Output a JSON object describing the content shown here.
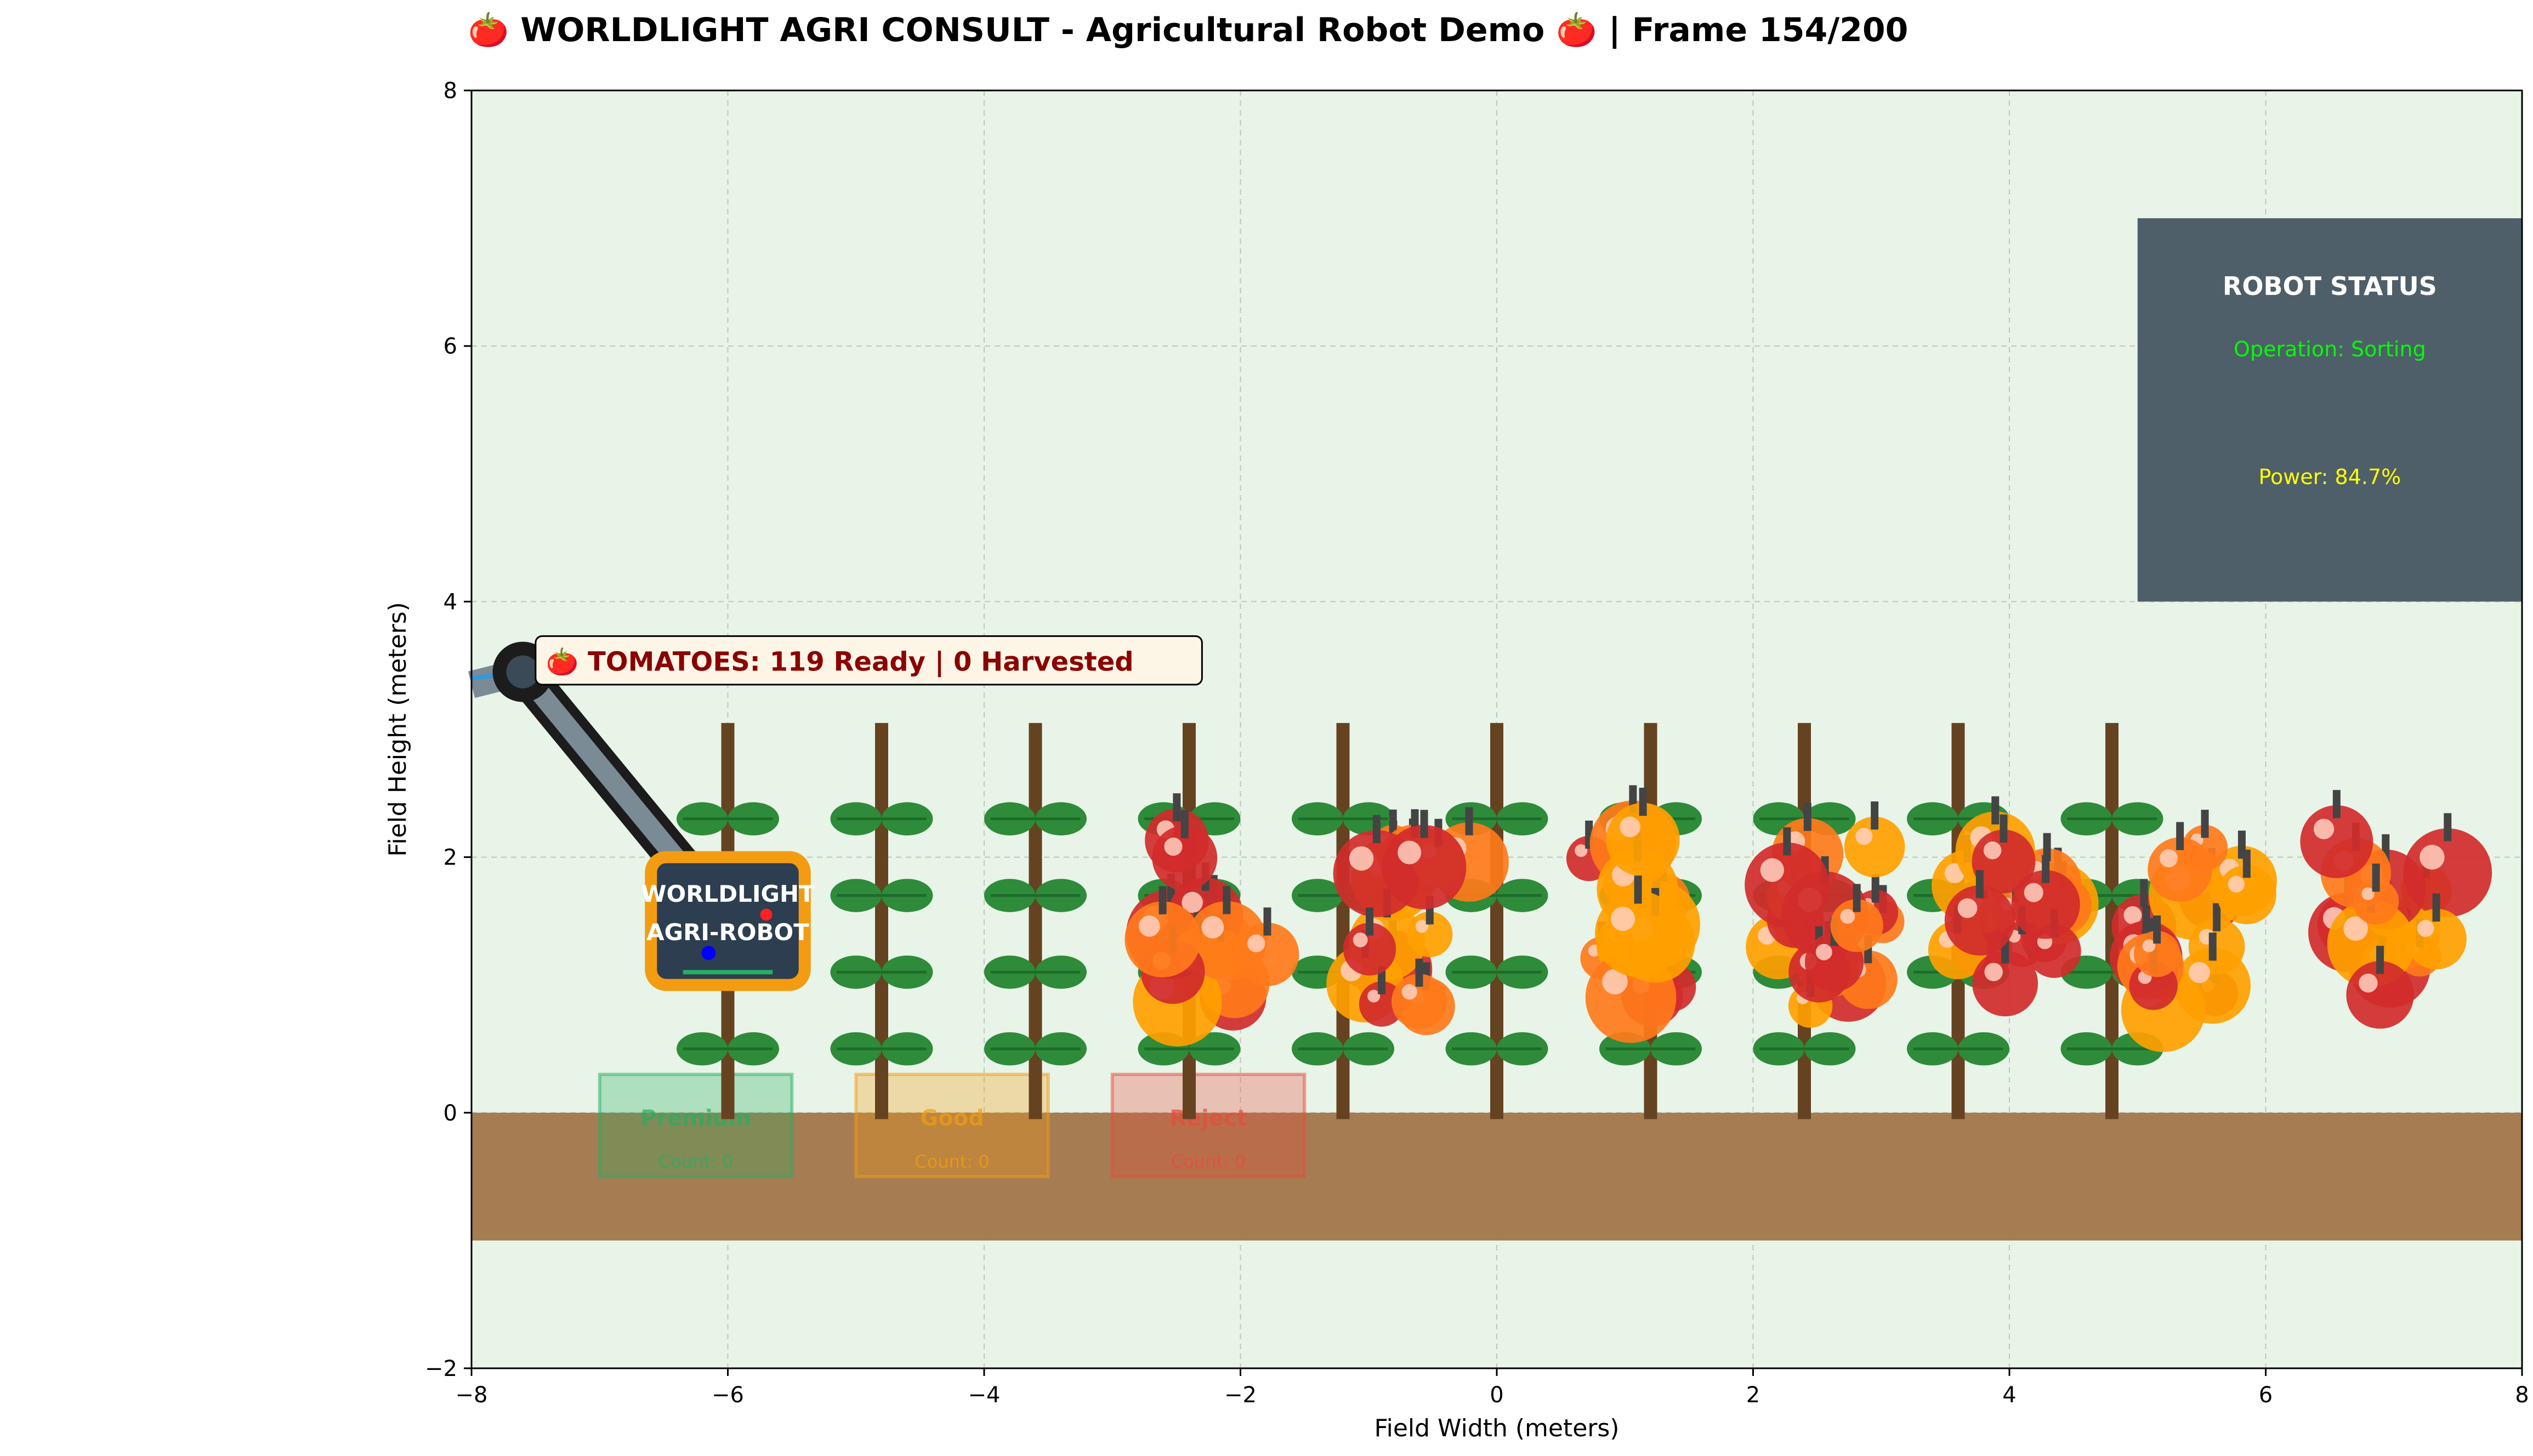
{
  "chart_data": {
    "type": "scatter",
    "title": "🍅 WORLDLIGHT AGRI CONSULT - Agricultural Robot Demo 🍅 | Frame 154/200",
    "xlabel": "Field Width (meters)",
    "ylabel": "Field Height (meters)",
    "xlim": [
      -8,
      8
    ],
    "ylim": [
      -2,
      8
    ],
    "xticks": [
      -8,
      -6,
      -4,
      -2,
      0,
      2,
      4,
      6,
      8
    ],
    "yticks": [
      -2,
      0,
      2,
      4,
      6,
      8
    ],
    "xtick_labels": [
      "−8",
      "−6",
      "−4",
      "−2",
      "0",
      "2",
      "4",
      "6",
      "8"
    ],
    "ytick_labels": [
      "−2",
      "0",
      "2",
      "4",
      "6",
      "8"
    ],
    "grid": true,
    "plant_stakes_x": [
      -6,
      -4.8,
      -3.6,
      -2.4,
      -1.2,
      0,
      1.2,
      2.4,
      3.6,
      4.8
    ],
    "leaf_rows_y": [
      0.5,
      1.1,
      1.7,
      2.3
    ],
    "tomato_clusters_x": [
      -2.2,
      -0.6,
      1.1,
      2.6,
      4.0,
      5.5,
      7.0
    ],
    "soil": {
      "y_top": 0,
      "y_bottom": -1
    },
    "robot": {
      "label_line1": "WORLDLIGHT",
      "label_line2": "AGRI-ROBOT",
      "body_center": [
        -6,
        1.5
      ],
      "arm_end": [
        -7.6,
        3.45
      ]
    },
    "tomato_banner": "🍅 TOMATOES: 119 Ready | 0 Harvested",
    "status_panel": {
      "title": "ROBOT STATUS",
      "operation": "Operation: Sorting",
      "power": "Power: 84.7%"
    },
    "bins": [
      {
        "label": "Premium",
        "count": "Count: 0",
        "color": "#27ae60",
        "x_range": [
          -7,
          -5.5
        ]
      },
      {
        "label": "Good",
        "count": "Count: 0",
        "color": "#f39c12",
        "x_range": [
          -5,
          -3.5
        ]
      },
      {
        "label": "Reject",
        "count": "Count: 0",
        "color": "#e74c3c",
        "x_range": [
          -3,
          -1.5
        ]
      }
    ]
  },
  "colors": {
    "field_bg": "#e8f4e8",
    "soil": "#a67c52",
    "stake": "#654321",
    "leaf": "#2e8b3a",
    "tomato_red": "#d12b2b",
    "tomato_orange": "#ff7a1a",
    "tomato_yellow": "#ffa000",
    "panel": "#4f5f6a",
    "robot_body": "#2c3e50",
    "robot_border": "#f39c12",
    "banner_text": "#8b0000",
    "status_title": "#ffffff",
    "status_operation": "#00ff00",
    "status_power": "#ffff00"
  }
}
